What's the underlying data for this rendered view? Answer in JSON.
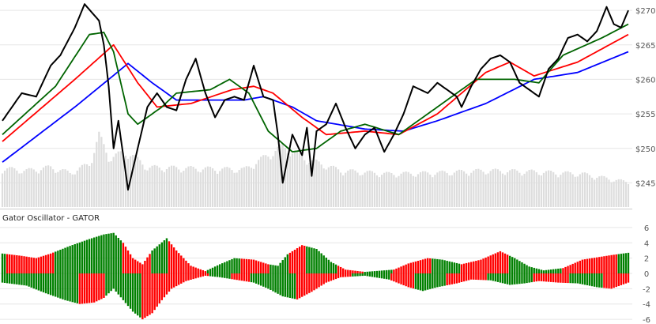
{
  "chart_data": [
    {
      "type": "line",
      "subtype": "price-with-alligator-and-volume",
      "y_ticks": [
        "$245",
        "$250",
        "$255",
        "$260",
        "$265",
        "$270"
      ],
      "y_tick_values": [
        245,
        250,
        255,
        260,
        265,
        270
      ],
      "ylim": [
        241.5,
        271.5
      ],
      "grid": true,
      "colors": {
        "price": "#000000",
        "jaw": "#0000ff",
        "teeth": "#ff0000",
        "lips": "#006400",
        "volume": "#dddddd"
      },
      "price_anchors": [
        [
          0,
          254.0
        ],
        [
          8,
          258.0
        ],
        [
          14,
          257.5
        ],
        [
          20,
          262.0
        ],
        [
          24,
          263.5
        ],
        [
          30,
          267.5
        ],
        [
          34,
          270.9
        ],
        [
          40,
          268.5
        ],
        [
          42,
          265.0
        ],
        [
          44,
          259.0
        ],
        [
          46,
          250.0
        ],
        [
          48,
          254.0
        ],
        [
          52,
          244.0
        ],
        [
          56,
          250.0
        ],
        [
          60,
          256.0
        ],
        [
          64,
          258.0
        ],
        [
          68,
          256.0
        ],
        [
          72,
          255.5
        ],
        [
          76,
          260.0
        ],
        [
          80,
          263.0
        ],
        [
          84,
          258.0
        ],
        [
          88,
          254.5
        ],
        [
          92,
          257.0
        ],
        [
          96,
          257.5
        ],
        [
          100,
          257.0
        ],
        [
          104,
          262.0
        ],
        [
          108,
          257.5
        ],
        [
          112,
          257.0
        ],
        [
          114,
          252.0
        ],
        [
          116,
          245.0
        ],
        [
          120,
          252.0
        ],
        [
          124,
          249.0
        ],
        [
          126,
          253.0
        ],
        [
          128,
          246.0
        ],
        [
          130,
          252.5
        ],
        [
          134,
          253.5
        ],
        [
          138,
          256.5
        ],
        [
          142,
          253.0
        ],
        [
          146,
          250.0
        ],
        [
          150,
          252.0
        ],
        [
          154,
          253.0
        ],
        [
          158,
          249.5
        ],
        [
          162,
          252.0
        ],
        [
          166,
          255.0
        ],
        [
          170,
          259.0
        ],
        [
          176,
          258.0
        ],
        [
          180,
          259.5
        ],
        [
          184,
          258.5
        ],
        [
          188,
          257.5
        ],
        [
          190,
          256.0
        ],
        [
          194,
          259.0
        ],
        [
          198,
          261.5
        ],
        [
          202,
          263.0
        ],
        [
          206,
          263.5
        ],
        [
          210,
          262.5
        ],
        [
          214,
          259.5
        ],
        [
          218,
          258.5
        ],
        [
          222,
          257.5
        ],
        [
          226,
          261.5
        ],
        [
          230,
          263.0
        ],
        [
          234,
          266.0
        ],
        [
          238,
          266.5
        ],
        [
          242,
          265.5
        ],
        [
          246,
          267.0
        ],
        [
          250,
          270.5
        ],
        [
          253,
          268.0
        ],
        [
          256,
          267.5
        ],
        [
          259,
          270.0
        ]
      ],
      "jaw_anchors": [
        [
          0,
          248.0
        ],
        [
          30,
          256.0
        ],
        [
          52,
          262.3
        ],
        [
          62,
          259.5
        ],
        [
          72,
          257.0
        ],
        [
          100,
          257.0
        ],
        [
          108,
          257.5
        ],
        [
          120,
          256.0
        ],
        [
          130,
          254.0
        ],
        [
          150,
          252.8
        ],
        [
          166,
          252.5
        ],
        [
          180,
          254.0
        ],
        [
          200,
          256.5
        ],
        [
          220,
          260.0
        ],
        [
          238,
          261.0
        ],
        [
          259,
          264.0
        ]
      ],
      "teeth_anchors": [
        [
          0,
          251.0
        ],
        [
          30,
          260.0
        ],
        [
          46,
          265.0
        ],
        [
          56,
          259.5
        ],
        [
          64,
          256.0
        ],
        [
          78,
          256.5
        ],
        [
          95,
          258.5
        ],
        [
          104,
          259.0
        ],
        [
          112,
          258.0
        ],
        [
          124,
          254.5
        ],
        [
          134,
          252.0
        ],
        [
          150,
          252.5
        ],
        [
          164,
          252.0
        ],
        [
          180,
          255.0
        ],
        [
          200,
          261.0
        ],
        [
          210,
          262.5
        ],
        [
          220,
          260.5
        ],
        [
          238,
          262.5
        ],
        [
          259,
          266.5
        ]
      ],
      "lips_anchors": [
        [
          0,
          252.0
        ],
        [
          22,
          259.0
        ],
        [
          36,
          266.5
        ],
        [
          42,
          266.8
        ],
        [
          46,
          264.0
        ],
        [
          52,
          255.0
        ],
        [
          56,
          253.5
        ],
        [
          66,
          256.0
        ],
        [
          72,
          258.0
        ],
        [
          86,
          258.5
        ],
        [
          94,
          260.0
        ],
        [
          102,
          258.0
        ],
        [
          110,
          252.5
        ],
        [
          120,
          249.5
        ],
        [
          130,
          250.0
        ],
        [
          140,
          252.5
        ],
        [
          150,
          253.5
        ],
        [
          164,
          252.0
        ],
        [
          180,
          256.0
        ],
        [
          196,
          260.0
        ],
        [
          212,
          260.0
        ],
        [
          222,
          259.5
        ],
        [
          232,
          263.5
        ],
        [
          248,
          266.0
        ],
        [
          259,
          268.0
        ]
      ],
      "volume_anchors": [
        [
          0,
          0.7
        ],
        [
          10,
          0.66
        ],
        [
          20,
          0.72
        ],
        [
          28,
          0.62
        ],
        [
          36,
          0.78
        ],
        [
          40,
          1.3
        ],
        [
          44,
          0.9
        ],
        [
          52,
          1.0
        ],
        [
          60,
          0.72
        ],
        [
          80,
          0.7
        ],
        [
          100,
          0.68
        ],
        [
          116,
          1.1
        ],
        [
          124,
          0.9
        ],
        [
          140,
          0.66
        ],
        [
          160,
          0.6
        ],
        [
          180,
          0.62
        ],
        [
          200,
          0.66
        ],
        [
          220,
          0.64
        ],
        [
          240,
          0.6
        ],
        [
          259,
          0.45
        ]
      ],
      "volume_max": 1.35
    },
    {
      "type": "bar",
      "subtype": "gator-oscillator",
      "title": "Gator Oscillator - GATOR",
      "y_ticks": [
        "-6",
        "-4",
        "-2",
        "0",
        "2",
        "4",
        "6"
      ],
      "y_tick_values": [
        -6,
        -4,
        -2,
        0,
        2,
        4,
        6
      ],
      "ylim": [
        -6.2,
        6.2
      ],
      "grid": true,
      "colors": {
        "up": "#008000",
        "down": "#ff0000"
      },
      "upper_anchors": [
        [
          0,
          2.6
        ],
        [
          8,
          2.3
        ],
        [
          14,
          2.0
        ],
        [
          20,
          2.6
        ],
        [
          28,
          3.6
        ],
        [
          36,
          4.5
        ],
        [
          42,
          5.1
        ],
        [
          46,
          5.3
        ],
        [
          50,
          4.0
        ],
        [
          54,
          2.0
        ],
        [
          58,
          1.2
        ],
        [
          62,
          3.0
        ],
        [
          68,
          4.6
        ],
        [
          72,
          3.0
        ],
        [
          78,
          1.0
        ],
        [
          84,
          0.3
        ],
        [
          90,
          1.2
        ],
        [
          96,
          2.0
        ],
        [
          104,
          1.8
        ],
        [
          110,
          1.2
        ],
        [
          114,
          1.0
        ],
        [
          118,
          2.5
        ],
        [
          124,
          3.7
        ],
        [
          130,
          3.2
        ],
        [
          136,
          1.5
        ],
        [
          142,
          0.5
        ],
        [
          150,
          0.2
        ],
        [
          162,
          0.5
        ],
        [
          168,
          1.3
        ],
        [
          176,
          2.0
        ],
        [
          182,
          1.8
        ],
        [
          190,
          1.2
        ],
        [
          198,
          1.8
        ],
        [
          206,
          2.9
        ],
        [
          212,
          2.0
        ],
        [
          218,
          0.9
        ],
        [
          224,
          0.4
        ],
        [
          232,
          0.7
        ],
        [
          240,
          1.8
        ],
        [
          252,
          2.4
        ],
        [
          259,
          2.7
        ]
      ],
      "upper_colors": "GGRRRRRRRRRRRRRRRRRRRRGGGGGGGGGGGGGGGGGGGGGGGGGGGGRRRRRRRRRRRRGGGGGGGRRRRRRRRRRRRRRRRGGGGGGGGGGGGGGRRRRRRRRRRRRGGGGGGGGRRRRRRRGGGGGGGGGGGGGRRRRRRRRRRRGGGGGGGGGGGGRRRRRRRRRRRRRRRRGGGGGGGGGGGGRRRRRRRRRRRRRRRRRRRRGGGGGGGGGGGGGGGGGGGGGGRRRRRRRRRRRRRRRRRRRRRRRGGGGGGGGGGGGGGGGGGGGGGGGGGRR",
      "lower_anchors": [
        [
          0,
          -1.2
        ],
        [
          10,
          -1.6
        ],
        [
          18,
          -2.6
        ],
        [
          26,
          -3.5
        ],
        [
          32,
          -4.0
        ],
        [
          38,
          -3.8
        ],
        [
          42,
          -3.2
        ],
        [
          46,
          -2.0
        ],
        [
          50,
          -3.5
        ],
        [
          54,
          -5.0
        ],
        [
          58,
          -6.0
        ],
        [
          62,
          -5.2
        ],
        [
          66,
          -3.5
        ],
        [
          70,
          -2.0
        ],
        [
          76,
          -1.0
        ],
        [
          84,
          -0.3
        ],
        [
          90,
          -0.5
        ],
        [
          96,
          -0.8
        ],
        [
          104,
          -1.2
        ],
        [
          110,
          -2.0
        ],
        [
          116,
          -3.0
        ],
        [
          122,
          -3.4
        ],
        [
          128,
          -2.4
        ],
        [
          134,
          -1.2
        ],
        [
          140,
          -0.5
        ],
        [
          150,
          -0.3
        ],
        [
          160,
          -0.8
        ],
        [
          168,
          -1.8
        ],
        [
          174,
          -2.3
        ],
        [
          180,
          -1.8
        ],
        [
          188,
          -1.3
        ],
        [
          194,
          -0.8
        ],
        [
          202,
          -0.9
        ],
        [
          210,
          -1.5
        ],
        [
          216,
          -1.3
        ],
        [
          222,
          -1.0
        ],
        [
          230,
          -1.2
        ],
        [
          238,
          -1.3
        ],
        [
          246,
          -1.8
        ],
        [
          252,
          -2.0
        ],
        [
          259,
          -1.2
        ]
      ],
      "lower_colors": "GGGGGGGGGGGGGGGGGGGGGGGGGGGGGGGGRRRRRRRRRRRGGGGGGGGGGGGGGGRRRRRRRRRRRRRRRRRRRRRRRRRRRRGGGGGGGGGRRRRRRRRGGGGGGGGGGGGGGGGGGGRRRRRRRRRRRRRRRRRRRRRRRGGGGGGGGGGGGGGGGRRRRRRRRRRGGGGGGGGGGGGGRRRRRRRRRRRRRRRRRGGGGGGGGGGGGGGGGGGGRRRRRRRRRRRRRRRGGGGGGGGGGGGGGRRRRRRRRRRRRRRRRGGGGGGGGGRRRRRRRRRRRRRRRRRGGGGGGGGGGGRRRRRRRRRRRR"
    }
  ]
}
